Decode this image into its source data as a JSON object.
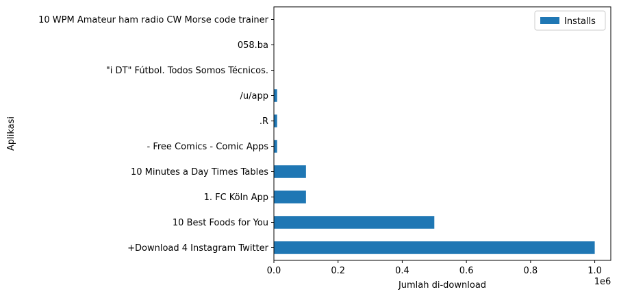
{
  "chart_data": {
    "type": "bar",
    "orientation": "horizontal",
    "categories": [
      "10 WPM Amateur ham radio CW Morse code trainer",
      "058.ba",
      "\"i DT\" Fútbol. Todos Somos Técnicos.",
      "/u/app",
      ".R",
      "- Free Comics - Comic Apps",
      "10 Minutes a Day Times Tables",
      "1. FC Köln App",
      "10 Best Foods for You",
      "+Download 4 Instagram Twitter"
    ],
    "series": [
      {
        "name": "Installs",
        "color": "#1f77b4",
        "values": [
          0,
          0,
          0,
          10000,
          10000,
          10000,
          100000,
          100000,
          500000,
          1000000
        ]
      }
    ],
    "xlabel": "Jumlah di-download",
    "ylabel": "Aplikasi",
    "xlim": [
      0,
      1050000
    ],
    "x_ticks": [
      0,
      200000,
      400000,
      600000,
      800000,
      1000000
    ],
    "x_tick_labels": [
      "0.0",
      "0.2",
      "0.4",
      "0.6",
      "0.8",
      "1.0"
    ],
    "x_offset_text": "1e6",
    "legend": {
      "entries": [
        "Installs"
      ],
      "position": "upper-right"
    },
    "grid": false
  }
}
